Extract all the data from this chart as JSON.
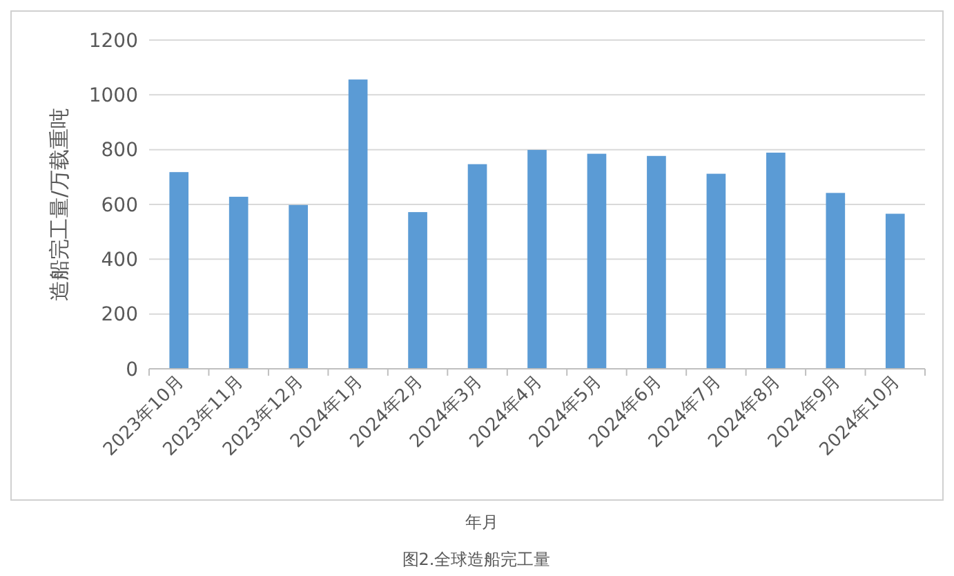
{
  "chart_data": {
    "type": "bar",
    "xlabel": "年月",
    "ylabel": "造船完工量/万载重吨",
    "annotations": [
      "图2.全球造船完工量"
    ],
    "categories": [
      "2023年10月",
      "2023年11月",
      "2023年12月",
      "2024年1月",
      "2024年2月",
      "2024年3月",
      "2024年4月",
      "2024年5月",
      "2024年6月",
      "2024年7月",
      "2024年8月",
      "2024年9月",
      "2024年10月"
    ],
    "values": [
      718,
      628,
      598,
      1056,
      572,
      747,
      799,
      785,
      777,
      712,
      789,
      642,
      566
    ],
    "color": "#5b9bd5",
    "ylim": [
      0,
      1200
    ],
    "yticks": [
      0,
      200,
      400,
      600,
      800,
      1000,
      1200
    ],
    "grid": "y"
  }
}
